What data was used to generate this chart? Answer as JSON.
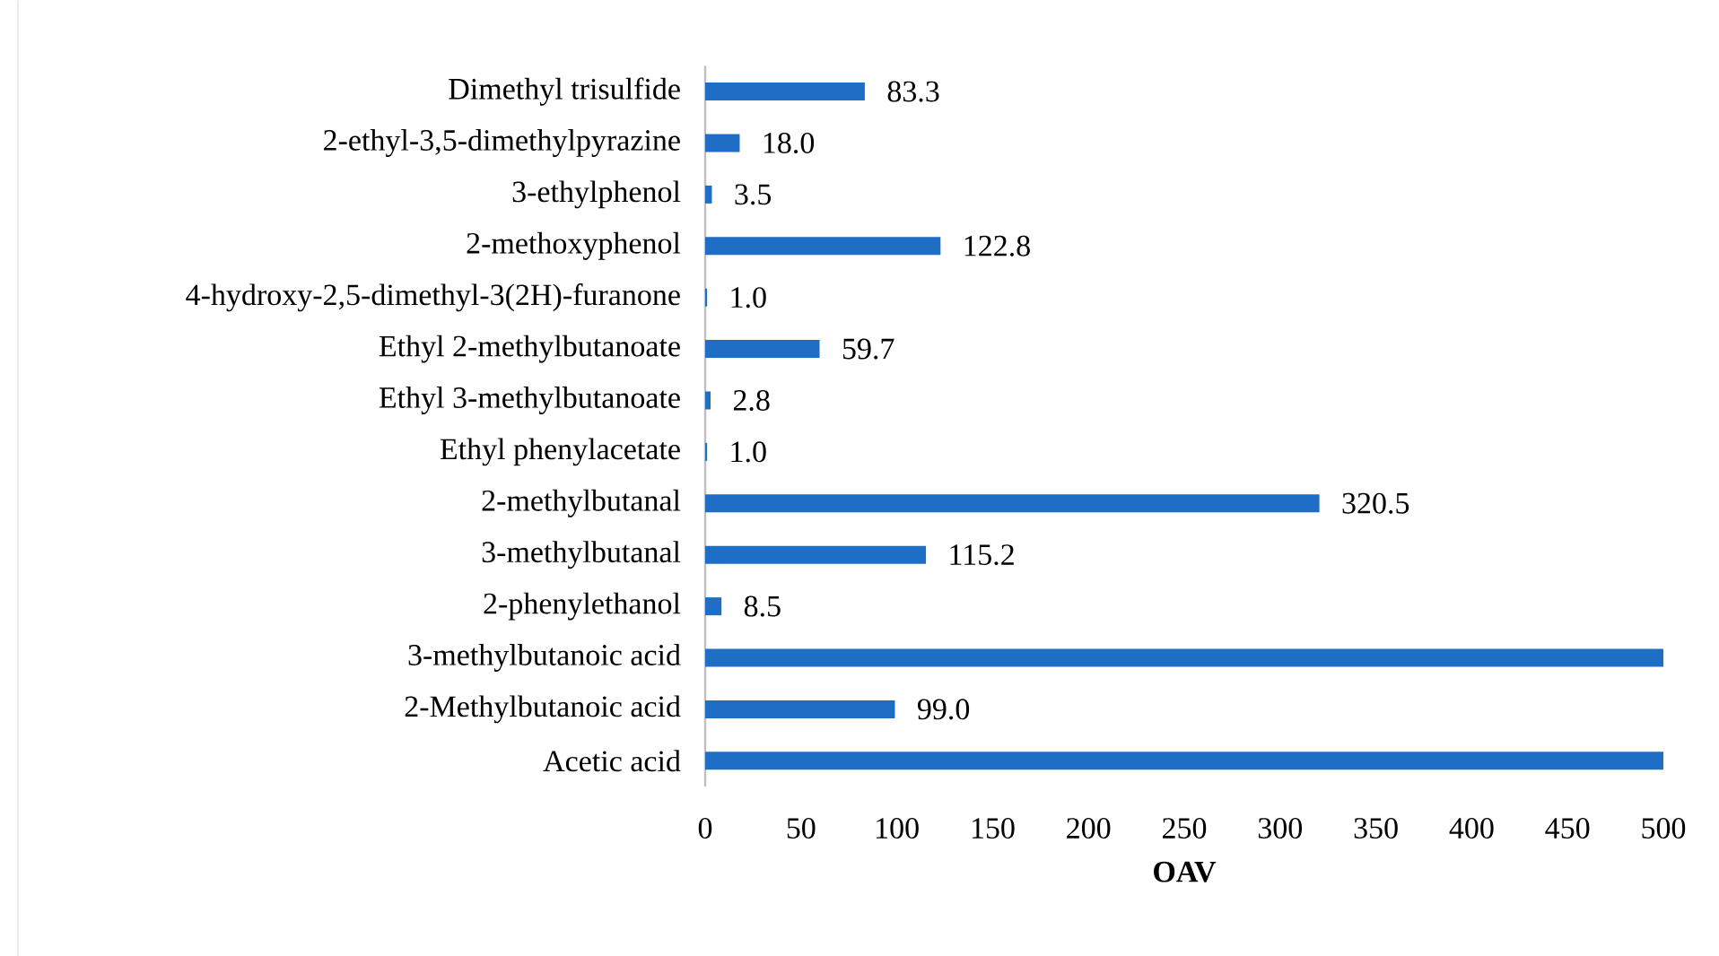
{
  "chart_data": {
    "type": "bar",
    "orientation": "horizontal",
    "xlabel": "OAV",
    "categories": [
      "Dimethyl trisulfide",
      "2-ethyl-3,5-dimethylpyrazine",
      "3-ethylphenol",
      "2-methoxyphenol",
      "4-hydroxy-2,5-dimethyl-3(2H)-furanone",
      "Ethyl 2-methylbutanoate",
      "Ethyl 3-methylbutanoate",
      "Ethyl phenylacetate",
      "2-methylbutanal",
      "3-methylbutanal",
      "2-phenylethanol",
      "3-methylbutanoic acid",
      "2-Methylbutanoic acid",
      "Acetic acid"
    ],
    "values": [
      83.3,
      18.0,
      3.5,
      122.8,
      1.0,
      59.7,
      2.8,
      1.0,
      320.5,
      115.2,
      8.5,
      500,
      99.0,
      500
    ],
    "value_labels": [
      "83.3",
      "18.0",
      "3.5",
      "122.8",
      "1.0",
      "59.7",
      "2.8",
      "1.0",
      "320.5",
      "115.2",
      "8.5",
      null,
      "99.0",
      null
    ],
    "color": "#1f6ec6",
    "xlim": [
      0,
      500
    ],
    "xticks": [
      0,
      50,
      100,
      150,
      200,
      250,
      300,
      350,
      400,
      450,
      500
    ]
  }
}
